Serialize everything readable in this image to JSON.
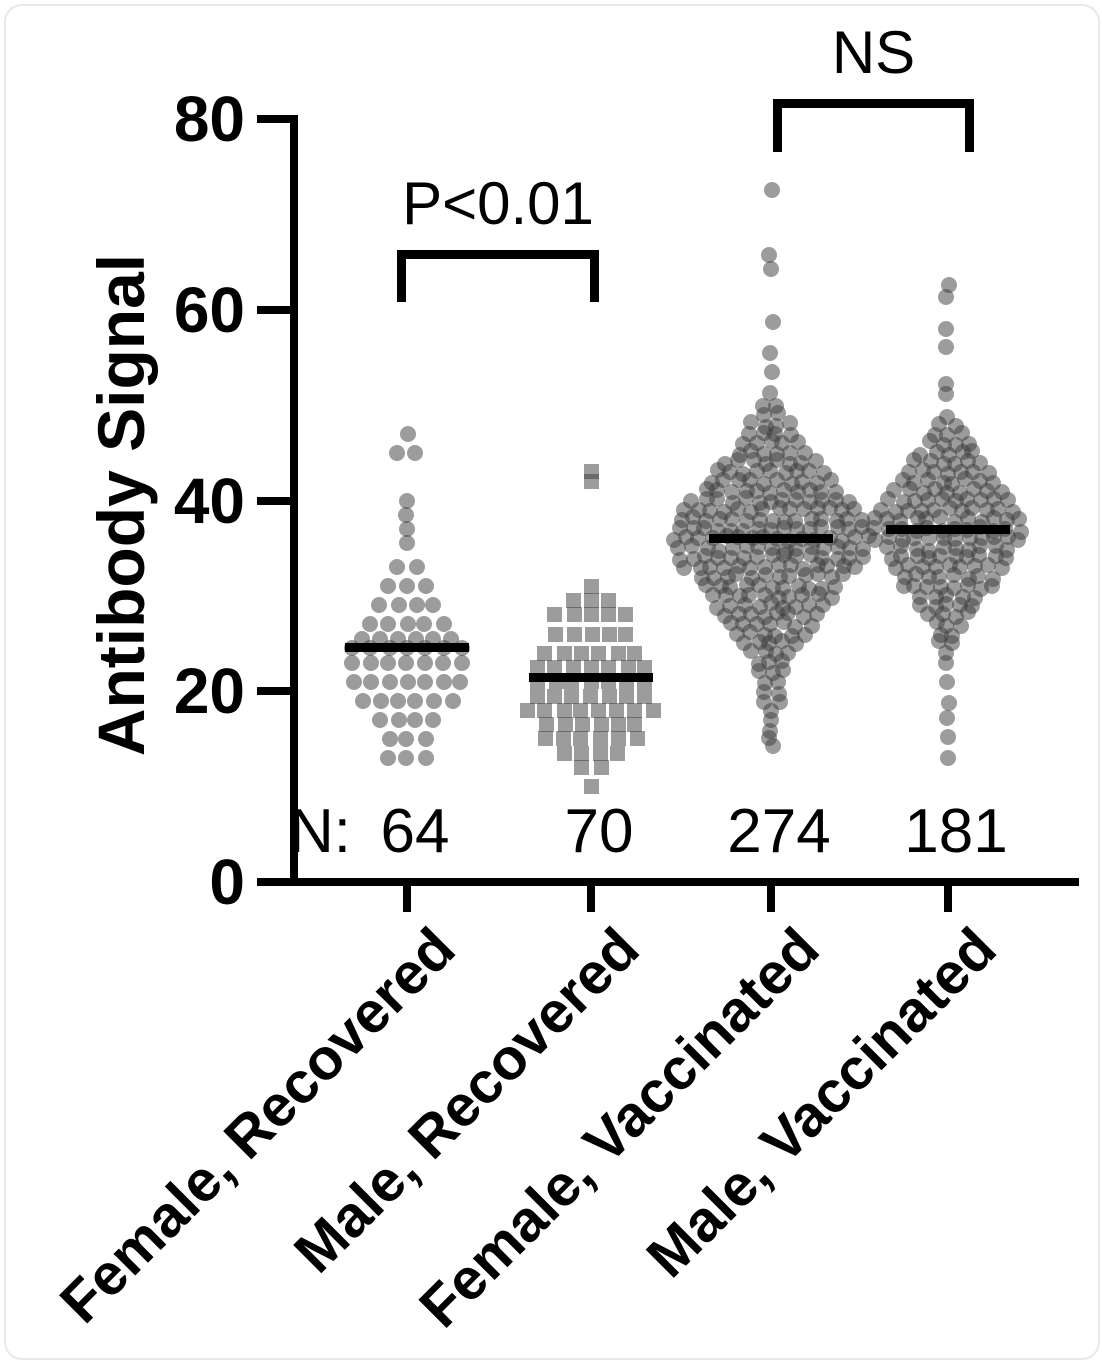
{
  "chart_data": {
    "type": "scatter",
    "subtype": "beeswarm",
    "title": "",
    "xlabel": "",
    "ylabel": "Antibody Signal",
    "ylim": [
      0,
      80
    ],
    "yticks": [
      0,
      20,
      40,
      60,
      80
    ],
    "grid": false,
    "legend": "none",
    "categories": [
      "Female, Recovered",
      "Male, Recovered",
      "Female, Vaccinated",
      "Male, Vaccinated"
    ],
    "n_label_prefix": "N:",
    "n_values": [
      64,
      70,
      274,
      181
    ],
    "medians": [
      24.6,
      21.4,
      36.0,
      37.0
    ],
    "markers": [
      "circle",
      "square",
      "circle",
      "circle"
    ],
    "marker_color": "#9b9b9b",
    "median_color": "#000000",
    "series": [
      {
        "name": "Female, Recovered",
        "n": 64,
        "histogram": [
          [
            47,
            1
          ],
          [
            45,
            2
          ],
          [
            40,
            1
          ],
          [
            38.5,
            1
          ],
          [
            37,
            1
          ],
          [
            35.5,
            1
          ],
          [
            33,
            2
          ],
          [
            31,
            3
          ],
          [
            29,
            4
          ],
          [
            27,
            5
          ],
          [
            25.5,
            6
          ],
          [
            24.5,
            7
          ],
          [
            23,
            7
          ],
          [
            21,
            7
          ],
          [
            19,
            6
          ],
          [
            17,
            4
          ],
          [
            15,
            3
          ],
          [
            13,
            3
          ]
        ]
      },
      {
        "name": "Male, Recovered",
        "n": 70,
        "histogram": [
          [
            43,
            1
          ],
          [
            42,
            1
          ],
          [
            31,
            1
          ],
          [
            29.5,
            3
          ],
          [
            28,
            5
          ],
          [
            26,
            5
          ],
          [
            24,
            6
          ],
          [
            22.5,
            7
          ],
          [
            21,
            7
          ],
          [
            19.5,
            7
          ],
          [
            18,
            8
          ],
          [
            16.5,
            6
          ],
          [
            15,
            6
          ],
          [
            13.5,
            4
          ],
          [
            12,
            2
          ],
          [
            10,
            1
          ]
        ]
      },
      {
        "name": "Female, Vaccinated",
        "n": 274,
        "histogram": [
          [
            72.5,
            1
          ],
          [
            65.5,
            1
          ],
          [
            64.5,
            1
          ],
          [
            58.5,
            1
          ],
          [
            55.5,
            1
          ],
          [
            53.5,
            1
          ],
          [
            51,
            1
          ],
          [
            50,
            2
          ],
          [
            49,
            2
          ],
          [
            48,
            4
          ],
          [
            47,
            4
          ],
          [
            46,
            5
          ],
          [
            45,
            6
          ],
          [
            44,
            8
          ],
          [
            43,
            9
          ],
          [
            42,
            10
          ],
          [
            41,
            11
          ],
          [
            40,
            13
          ],
          [
            39,
            14
          ],
          [
            38,
            15
          ],
          [
            37,
            15
          ],
          [
            36,
            16
          ],
          [
            35,
            15
          ],
          [
            34,
            15
          ],
          [
            33,
            14
          ],
          [
            32,
            12
          ],
          [
            31,
            11
          ],
          [
            30,
            10
          ],
          [
            29,
            9
          ],
          [
            28,
            8
          ],
          [
            27,
            7
          ],
          [
            26,
            6
          ],
          [
            25,
            5
          ],
          [
            24,
            4
          ],
          [
            23,
            3
          ],
          [
            22,
            3
          ],
          [
            21,
            2
          ],
          [
            20,
            2
          ],
          [
            19,
            2
          ],
          [
            18,
            1
          ],
          [
            17,
            1
          ],
          [
            16,
            1
          ],
          [
            15,
            1
          ],
          [
            14,
            1
          ]
        ]
      },
      {
        "name": "Male, Vaccinated",
        "n": 181,
        "histogram": [
          [
            62.5,
            1
          ],
          [
            61.5,
            1
          ],
          [
            58,
            1
          ],
          [
            56,
            1
          ],
          [
            52,
            1
          ],
          [
            51,
            1
          ],
          [
            49,
            1
          ],
          [
            48,
            2
          ],
          [
            47,
            3
          ],
          [
            46,
            4
          ],
          [
            45,
            5
          ],
          [
            44,
            6
          ],
          [
            43,
            7
          ],
          [
            42,
            8
          ],
          [
            41,
            9
          ],
          [
            40,
            10
          ],
          [
            39,
            11
          ],
          [
            38,
            12
          ],
          [
            37,
            12
          ],
          [
            36,
            12
          ],
          [
            35,
            10
          ],
          [
            34,
            10
          ],
          [
            33,
            9
          ],
          [
            32,
            8
          ],
          [
            31,
            8
          ],
          [
            30,
            5
          ],
          [
            29,
            5
          ],
          [
            28,
            4
          ],
          [
            27,
            3
          ],
          [
            26,
            2
          ],
          [
            25,
            2
          ],
          [
            24,
            1
          ],
          [
            23,
            1
          ],
          [
            21,
            1
          ],
          [
            19,
            1
          ],
          [
            17,
            1
          ],
          [
            15,
            1
          ],
          [
            13,
            1
          ]
        ]
      }
    ],
    "comparisons": [
      {
        "label": "P<0.01",
        "between": [
          0,
          1
        ],
        "bar_value": 65.8,
        "arm_drop": 5.5
      },
      {
        "label": "NS",
        "between": [
          2,
          3
        ],
        "bar_value": 81.6,
        "arm_drop": 5.5
      }
    ]
  }
}
